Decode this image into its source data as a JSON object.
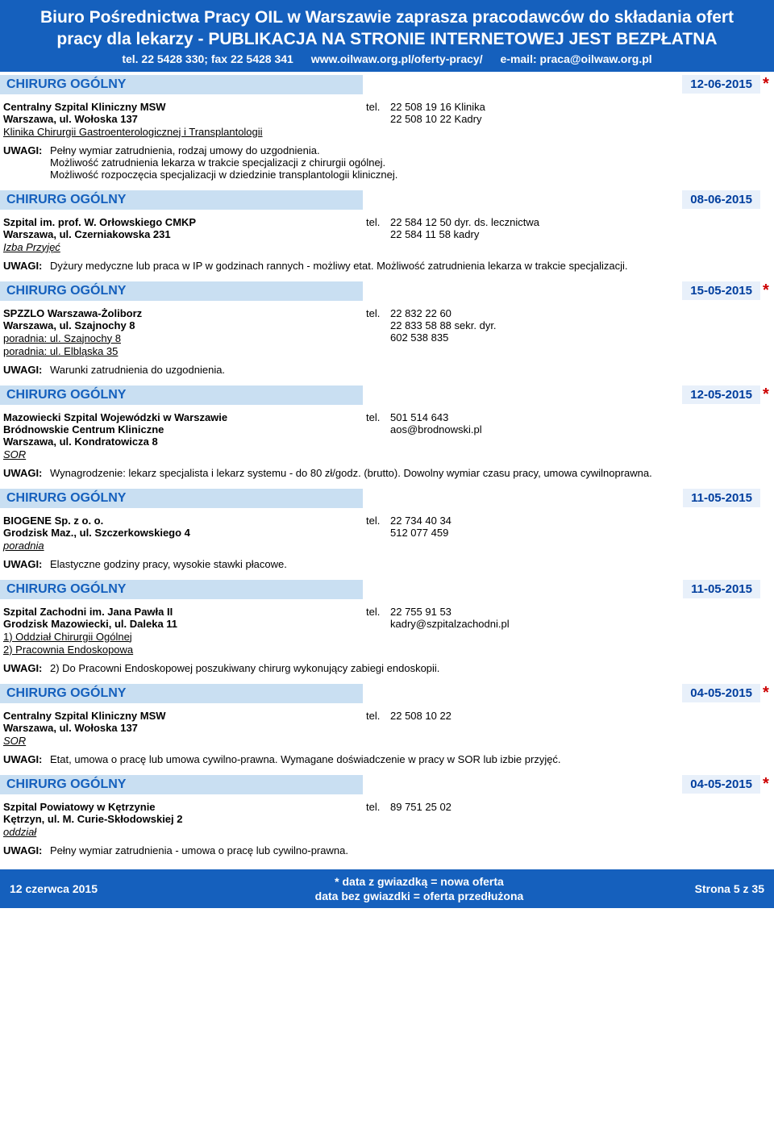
{
  "header": {
    "title": "Biuro Pośrednictwa Pracy OIL w Warszawie zaprasza pracodawców do składania ofert",
    "subtitle": "pracy dla lekarzy - PUBLIKACJA NA STRONIE INTERNETOWEJ JEST BEZPŁATNA",
    "tel": "tel. 22 5428 330; fax 22 5428 341",
    "url": "www.oilwaw.org.pl/oferty-pracy/",
    "email": "e-mail: praca@oilwaw.org.pl"
  },
  "listings": [
    {
      "title": "CHIRURG OGÓLNY",
      "date": "12-06-2015",
      "star": true,
      "org": "Centralny Szpital Kliniczny MSW",
      "addr": "Warszawa, ul. Wołoska 137",
      "sub": "Klinika Chirurgii Gastroenterologicznej i Transplantologii",
      "tel1": "22 508 19 16 Klinika",
      "tel2": "22 508 10 22 Kadry",
      "tel3": "",
      "notes": "Pełny wymiar zatrudnienia, rodzaj umowy do uzgodnienia.\nMożliwość zatrudnienia lekarza w trakcie specjalizacji z chirurgii ogólnej.\nMożliwość rozpoczęcia specjalizacji w dziedzinie transplantologii klinicznej."
    },
    {
      "title": "CHIRURG OGÓLNY",
      "date": "08-06-2015",
      "star": false,
      "org": "Szpital im. prof. W. Orłowskiego CMKP",
      "addr": "Warszawa, ul. Czerniakowska 231",
      "sub_italic": "Izba Przyjęć",
      "tel1": "22 584 12 50 dyr. ds. lecznictwa",
      "tel2": "22 584 11 58 kadry",
      "tel3": "",
      "notes": "Dyżury medyczne lub praca w IP w godzinach rannych - możliwy etat. Możliwość zatrudnienia lekarza w trakcie specjalizacji."
    },
    {
      "title": "CHIRURG OGÓLNY",
      "date": "15-05-2015",
      "star": true,
      "org": "SPZZLO Warszawa-Żoliborz",
      "addr": "Warszawa, ul. Szajnochy 8",
      "sub": "poradnia: ul. Szajnochy 8",
      "sub2": "poradnia: ul. Elbląska 35",
      "tel1": "22 832 22 60",
      "tel2": "22 833 58 88 sekr. dyr.",
      "tel3": "602 538 835",
      "notes": "Warunki zatrudnienia do uzgodnienia."
    },
    {
      "title": "CHIRURG OGÓLNY",
      "date": "12-05-2015",
      "star": true,
      "org": "Mazowiecki Szpital Wojewódzki w Warszawie",
      "org2": "Bródnowskie Centrum Kliniczne",
      "addr": "Warszawa, ul. Kondratowicza 8",
      "sub_italic": "SOR",
      "tel1": "501 514 643",
      "tel2": "aos@brodnowski.pl",
      "tel3": "",
      "notes": "Wynagrodzenie: lekarz specjalista i lekarz systemu - do 80 zł/godz. (brutto). Dowolny wymiar czasu pracy, umowa cywilnoprawna."
    },
    {
      "title": "CHIRURG OGÓLNY",
      "date": "11-05-2015",
      "star": false,
      "org": "BIOGENE Sp. z o. o.",
      "addr": "Grodzisk Maz., ul. Szczerkowskiego 4",
      "sub_italic": "poradnia",
      "tel1": "22 734 40 34",
      "tel2": "512 077 459",
      "tel3": "",
      "notes": "Elastyczne godziny pracy, wysokie stawki płacowe."
    },
    {
      "title": "CHIRURG OGÓLNY",
      "date": "11-05-2015",
      "star": false,
      "org": "Szpital Zachodni im. Jana Pawła II",
      "addr": "Grodzisk Mazowiecki, ul. Daleka 11",
      "sub": "1) Oddział Chirurgii Ogólnej",
      "sub2": "2) Pracownia Endoskopowa",
      "tel1": "22 755 91 53",
      "tel2": "kadry@szpitalzachodni.pl",
      "tel3": "",
      "notes": "2) Do Pracowni Endoskopowej poszukiwany chirurg wykonujący zabiegi endoskopii."
    },
    {
      "title": "CHIRURG OGÓLNY",
      "date": "04-05-2015",
      "star": true,
      "org": "Centralny Szpital Kliniczny MSW",
      "addr": "Warszawa, ul. Wołoska 137",
      "sub_italic": "SOR",
      "tel1": "22 508 10 22",
      "tel2": "",
      "tel3": "",
      "notes": "Etat, umowa o pracę lub umowa cywilno-prawna. Wymagane doświadczenie w pracy w SOR lub izbie przyjęć."
    },
    {
      "title": "CHIRURG OGÓLNY",
      "date": "04-05-2015",
      "star": true,
      "org": "Szpital Powiatowy w Kętrzynie",
      "addr": "Kętrzyn, ul. M. Curie-Skłodowskiej 2",
      "sub_italic": "oddział",
      "tel1": "89 751 25 02",
      "tel2": "",
      "tel3": "",
      "notes": "Pełny wymiar zatrudnienia - umowa o pracę lub cywilno-prawna."
    }
  ],
  "footer": {
    "date": "12 czerwca 2015",
    "legend1": "* data z gwiazdką = nowa oferta",
    "legend2": "data bez gwiazdki = oferta przedłużona",
    "page": "Strona 5 z 35"
  },
  "labels": {
    "tel": "tel.",
    "uwagi": "UWAGI:"
  }
}
